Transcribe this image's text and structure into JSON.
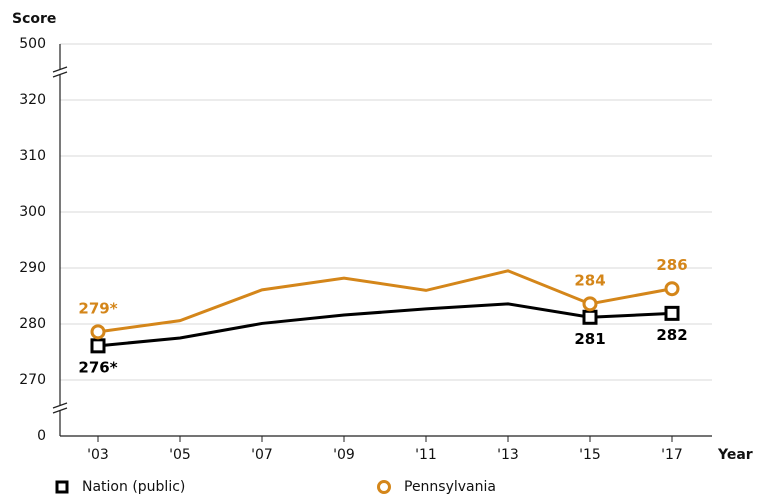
{
  "chart_data": {
    "type": "line",
    "y_label": "Score",
    "x_label": "Year",
    "categories": [
      "'03",
      "'05",
      "'07",
      "'09",
      "'11",
      "'13",
      "'15",
      "'17"
    ],
    "series": [
      {
        "name": "Nation (public)",
        "color": "#000000",
        "marker": "square",
        "values": [
          276.1,
          277.5,
          280.1,
          281.6,
          282.7,
          283.6,
          281.2,
          281.9
        ],
        "value_labels": [
          "276*",
          null,
          null,
          null,
          null,
          null,
          "281",
          "282"
        ]
      },
      {
        "name": "Pennsylvania",
        "color": "#d4861a",
        "marker": "circle",
        "values": [
          278.6,
          280.6,
          286.1,
          288.2,
          286.0,
          289.5,
          283.6,
          286.3
        ],
        "value_labels": [
          "279*",
          null,
          null,
          null,
          null,
          null,
          "284",
          "286"
        ]
      }
    ],
    "ylim": [
      0,
      500
    ],
    "yticks": [
      0,
      270,
      280,
      290,
      300,
      310,
      320,
      500
    ],
    "axis_break": true,
    "grid": true
  }
}
